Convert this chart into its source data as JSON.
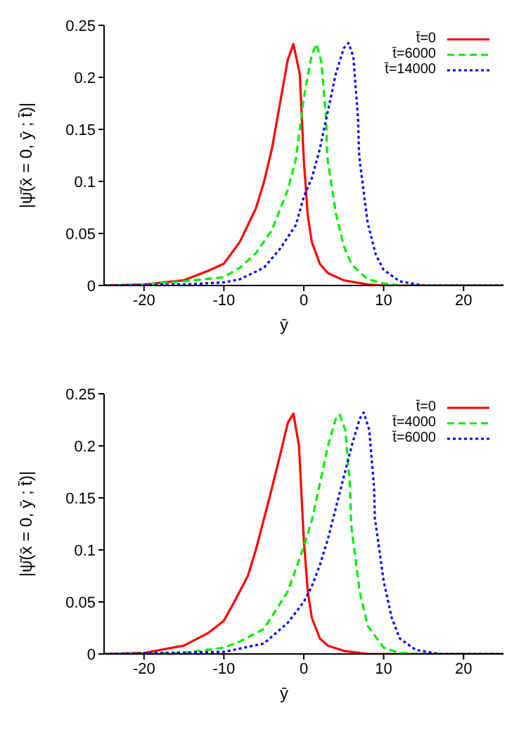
{
  "chart_data": [
    {
      "type": "line",
      "xlabel": "ȳ",
      "ylabel": "|ψ̄(x̄ = 0, ȳ ; t̄)|",
      "xlim": [
        -25,
        25
      ],
      "ylim": [
        0,
        0.25
      ],
      "xticks": [
        -20,
        -10,
        0,
        10,
        20
      ],
      "yticks": [
        0,
        0.05,
        0.1,
        0.15,
        0.2,
        0.25
      ],
      "legend": "top right",
      "marker": "none",
      "series": [
        {
          "name": "t̄=0",
          "color": "#ff0000",
          "line_style": "solid",
          "x": [
            -25,
            -20,
            -15,
            -12,
            -10,
            -8,
            -6,
            -5,
            -4,
            -3,
            -2,
            -1.3,
            -0.5,
            0,
            0.5,
            1,
            2,
            3,
            5,
            8,
            10,
            25
          ],
          "values": [
            0,
            0.001,
            0.005,
            0.014,
            0.021,
            0.042,
            0.074,
            0.099,
            0.131,
            0.174,
            0.217,
            0.232,
            0.203,
            0.121,
            0.067,
            0.042,
            0.021,
            0.012,
            0.005,
            0.001,
            0,
            0
          ]
        },
        {
          "name": "t̄=6000",
          "color": "#00ee00",
          "line_style": "dashed",
          "x": [
            -25,
            -20,
            -15,
            -10,
            -8,
            -6,
            -4,
            -2,
            -1,
            0,
            1,
            1.6,
            2.2,
            2.8,
            2.9,
            3,
            4,
            5,
            6,
            8,
            10,
            12,
            25
          ],
          "values": [
            0,
            0.001,
            0.004,
            0.008,
            0.017,
            0.031,
            0.053,
            0.092,
            0.121,
            0.18,
            0.222,
            0.232,
            0.215,
            0.16,
            0.13,
            0.12,
            0.07,
            0.038,
            0.02,
            0.006,
            0.002,
            0,
            0
          ]
        },
        {
          "name": "t̄=14000",
          "color": "#0000ff",
          "line_style": "dotted",
          "x": [
            -25,
            -15,
            -10,
            -8,
            -5,
            -3,
            -1,
            0,
            1,
            2,
            3,
            4,
            5,
            5.6,
            6.2,
            6.8,
            6.9,
            7,
            8,
            9,
            10,
            12,
            15,
            25
          ],
          "values": [
            0,
            0.001,
            0.003,
            0.006,
            0.017,
            0.035,
            0.058,
            0.085,
            0.103,
            0.131,
            0.167,
            0.203,
            0.228,
            0.233,
            0.22,
            0.16,
            0.13,
            0.12,
            0.06,
            0.03,
            0.015,
            0.004,
            0,
            0
          ]
        }
      ]
    },
    {
      "type": "line",
      "xlabel": "ȳ",
      "ylabel": "|ψ̄(x̄ = 0, ȳ ; t̄)|",
      "xlim": [
        -25,
        25
      ],
      "ylim": [
        0,
        0.25
      ],
      "xticks": [
        -20,
        -10,
        0,
        10,
        20
      ],
      "yticks": [
        0,
        0.05,
        0.1,
        0.15,
        0.2,
        0.25
      ],
      "legend": "top right",
      "marker": "none",
      "series": [
        {
          "name": "t̄=0",
          "color": "#ff0000",
          "line_style": "solid",
          "x": [
            -25,
            -20,
            -15,
            -12,
            -10,
            -8.7,
            -7,
            -6,
            -4.3,
            -3,
            -2,
            -1.3,
            -0.6,
            0,
            0.5,
            1,
            2,
            3,
            5,
            8,
            25
          ],
          "values": [
            0,
            0.001,
            0.008,
            0.02,
            0.032,
            0.05,
            0.075,
            0.1,
            0.15,
            0.19,
            0.222,
            0.231,
            0.2,
            0.11,
            0.06,
            0.035,
            0.015,
            0.008,
            0.003,
            0,
            0
          ]
        },
        {
          "name": "t̄=4000",
          "color": "#00ee00",
          "line_style": "dashed",
          "x": [
            -25,
            -15,
            -10,
            -8,
            -5,
            -2,
            0,
            1,
            2,
            3,
            4,
            4.5,
            5.2,
            5.8,
            5.9,
            6,
            7,
            8,
            10,
            12,
            15,
            25
          ],
          "values": [
            0,
            0.001,
            0.006,
            0.012,
            0.024,
            0.06,
            0.103,
            0.128,
            0.163,
            0.199,
            0.226,
            0.23,
            0.215,
            0.16,
            0.13,
            0.12,
            0.06,
            0.027,
            0.006,
            0.001,
            0,
            0
          ]
        },
        {
          "name": "t̄=6000",
          "color": "#0000ff",
          "line_style": "dotted",
          "x": [
            -25,
            -10,
            -5,
            -2,
            0,
            1,
            2,
            3,
            4,
            5,
            6,
            7,
            7.5,
            8.2,
            8.8,
            8.9,
            9,
            10,
            11,
            12,
            14,
            17,
            25
          ],
          "values": [
            0,
            0.002,
            0.01,
            0.03,
            0.05,
            0.065,
            0.085,
            0.11,
            0.14,
            0.17,
            0.2,
            0.226,
            0.232,
            0.215,
            0.16,
            0.13,
            0.125,
            0.07,
            0.035,
            0.015,
            0.004,
            0,
            0
          ]
        }
      ]
    }
  ]
}
